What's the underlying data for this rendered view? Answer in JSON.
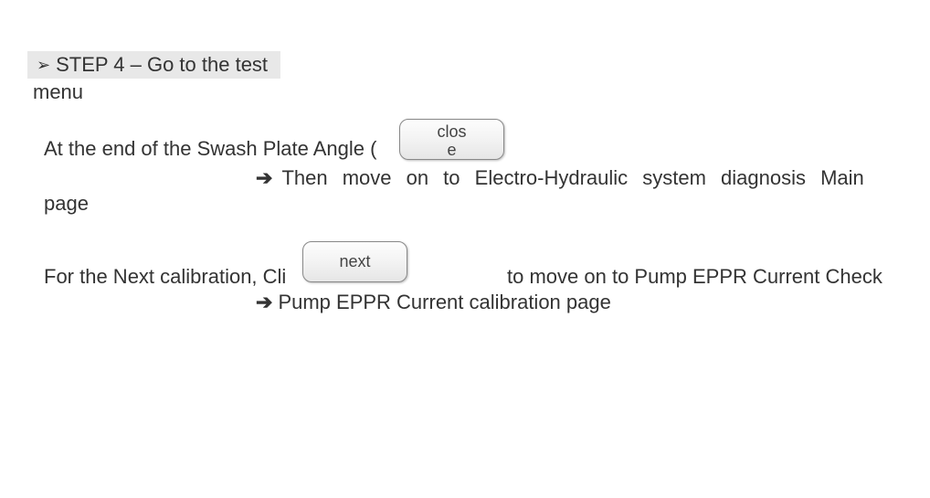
{
  "heading": {
    "chevron": "➢",
    "text": "STEP 4 – Go to the test"
  },
  "menu_continuation": "menu",
  "paragraph1": {
    "before_button": "At the end of the Swash Plate Angle (",
    "arrow": "➔",
    "arrow_text": "Then move on to Electro-Hydraulic system diagnosis Main",
    "page_word": "page"
  },
  "paragraph2": {
    "before_button": "For the Next calibration, Cli",
    "after_button": "to move on to Pump EPPR Current Check",
    "arrow": "➔",
    "arrow_text": "Pump EPPR Current calibration page"
  },
  "buttons": {
    "close_label": "close",
    "next_label": "next"
  },
  "colors": {
    "heading_bg": "#e8e8e8",
    "text": "#333333",
    "page_bg": "#ffffff",
    "button_border": "#888888"
  }
}
